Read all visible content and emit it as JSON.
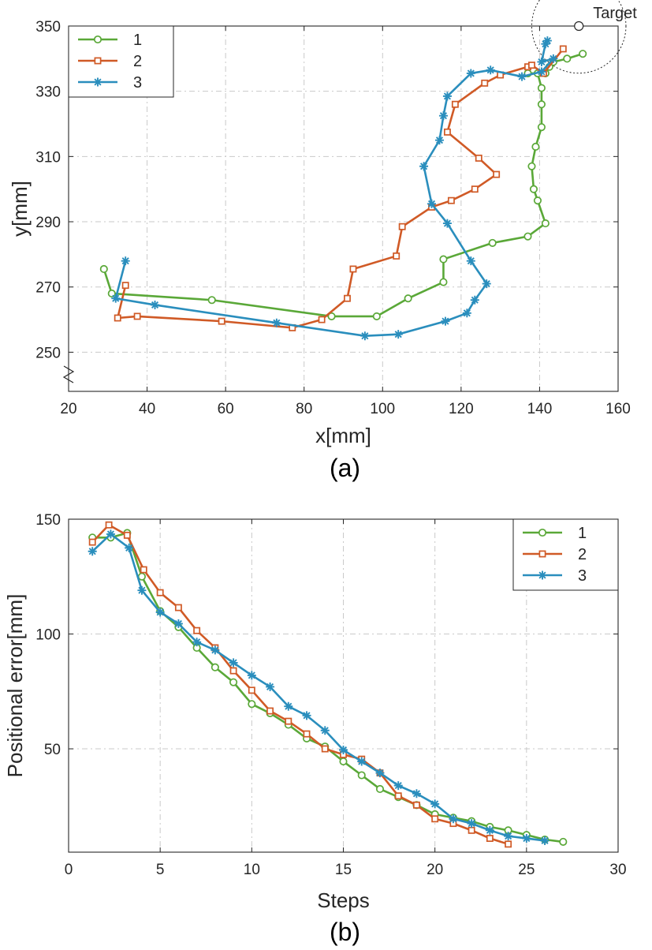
{
  "chart_data": [
    {
      "type": "line",
      "caption": "(a)",
      "xlabel": "x[mm]",
      "ylabel": "y[mm]",
      "xlim": [
        20,
        160
      ],
      "ylim": [
        238,
        350
      ],
      "xticks": [
        20,
        40,
        60,
        80,
        100,
        120,
        140,
        160
      ],
      "yticks": [
        250,
        270,
        290,
        310,
        330,
        350
      ],
      "axis_break": "y-axis between 238 and 250",
      "grid": true,
      "legend_position": "top-left",
      "target": {
        "label": "Target",
        "x": 150,
        "y": 350,
        "radius": 12
      },
      "series": [
        {
          "name": "1",
          "color": "#5aa838",
          "marker": "circle",
          "x": [
            29,
            31,
            56.5,
            87,
            98.5,
            106.5,
            115.5,
            115.5,
            128,
            137,
            141.5,
            139.5,
            138.5,
            138,
            139,
            140.5,
            140.5,
            140.5,
            139.5,
            137,
            141.5,
            142.5,
            143.5,
            147,
            151
          ],
          "y": [
            275.5,
            268,
            266,
            261,
            261,
            266.5,
            271.5,
            278.5,
            283.5,
            285.5,
            289.5,
            296.5,
            300,
            307,
            313,
            319,
            326,
            331,
            335.5,
            335.5,
            335.5,
            337.5,
            339,
            340,
            341.5
          ]
        },
        {
          "name": "2",
          "color": "#d05a26",
          "marker": "square",
          "x": [
            34.5,
            32.5,
            37.5,
            59,
            77,
            84.5,
            91,
            92.5,
            103.5,
            105,
            112.5,
            117.5,
            123.5,
            129,
            124.5,
            116.5,
            118.5,
            126,
            130,
            137,
            138,
            141,
            146
          ],
          "y": [
            270.5,
            260.5,
            261,
            259.5,
            257.5,
            260,
            266.5,
            275.5,
            279.5,
            288.5,
            294.5,
            296.5,
            300,
            304.5,
            309.5,
            317.5,
            326,
            332.5,
            335,
            337.5,
            338,
            335.5,
            343
          ]
        },
        {
          "name": "3",
          "color": "#2a8ebd",
          "marker": "asterisk",
          "x": [
            34.5,
            32,
            42,
            73,
            95.5,
            104,
            116,
            121.5,
            123.5,
            126.5,
            122.5,
            116.5,
            112.5,
            110.5,
            114.5,
            115.5,
            116.5,
            122.5,
            127.5,
            135.5,
            140.5,
            143.5,
            140.5,
            141.5,
            142
          ],
          "y": [
            278,
            266.5,
            264.5,
            259,
            255,
            255.5,
            259.5,
            262,
            266,
            271,
            278,
            289.5,
            295.5,
            307,
            315,
            322.5,
            328.5,
            335.5,
            336.5,
            334.5,
            336,
            340,
            339,
            344.5,
            345.5
          ]
        }
      ]
    },
    {
      "type": "line",
      "caption": "(b)",
      "xlabel": "Steps",
      "ylabel": "Positional error[mm]",
      "xlim": [
        0,
        30
      ],
      "ylim": [
        5,
        150
      ],
      "xticks": [
        0,
        5,
        10,
        15,
        20,
        25,
        30
      ],
      "yticks": [
        50,
        100,
        150
      ],
      "grid": true,
      "legend_position": "top-right",
      "series": [
        {
          "name": "1",
          "color": "#5aa838",
          "marker": "circle",
          "x": [
            1.3,
            2.3,
            3.2,
            4,
            5,
            6,
            7,
            8,
            9,
            10,
            11,
            12,
            13,
            14,
            15,
            16,
            17,
            18,
            19,
            20,
            21,
            22,
            23,
            24,
            25,
            26,
            27
          ],
          "y": [
            142,
            142,
            144,
            125,
            110,
            103,
            94,
            85.5,
            79,
            69.5,
            65.5,
            60.5,
            54.5,
            51,
            44.5,
            38.5,
            32.5,
            29,
            25.5,
            21.5,
            20,
            18.5,
            16,
            14.5,
            12.5,
            10.5,
            9.5
          ]
        },
        {
          "name": "2",
          "color": "#d05a26",
          "marker": "square",
          "x": [
            1.3,
            2.2,
            3.2,
            4.1,
            5,
            6,
            7,
            8,
            9,
            10,
            11,
            12,
            13,
            14,
            15,
            16,
            17,
            18,
            19,
            20,
            21,
            22,
            23,
            24
          ],
          "y": [
            140,
            147.5,
            143,
            128,
            118,
            111.5,
            101.5,
            94,
            84,
            75.5,
            66.5,
            62,
            56.5,
            50,
            47.5,
            45.5,
            39.5,
            29.5,
            25.5,
            19.5,
            17.5,
            14.5,
            11,
            8.5
          ]
        },
        {
          "name": "3",
          "color": "#2a8ebd",
          "marker": "asterisk",
          "x": [
            1.3,
            2.3,
            3.3,
            4,
            5,
            6,
            7,
            8,
            9,
            10,
            11,
            12,
            13,
            14,
            15,
            16,
            17,
            18,
            19,
            20,
            21,
            22,
            23,
            24,
            25,
            26
          ],
          "y": [
            136,
            143.5,
            137.5,
            119,
            109.5,
            104.5,
            96.5,
            93,
            87.5,
            82,
            77,
            68.5,
            64.5,
            58,
            49.5,
            44.5,
            39.5,
            34,
            30.5,
            26,
            19.5,
            17.5,
            14.5,
            12,
            11,
            10
          ]
        }
      ]
    }
  ]
}
